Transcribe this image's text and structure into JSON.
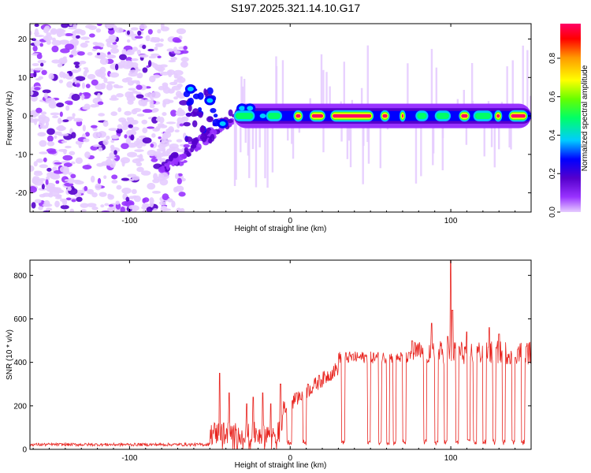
{
  "title": "S197.2025.321.14.10.G17",
  "chart_data": [
    {
      "type": "heatmap",
      "name": "spectrogram",
      "xlabel": "Height of straight line (km)",
      "ylabel": "Frequency (Hz)",
      "xlim": [
        -162,
        150
      ],
      "ylim": [
        -25,
        24
      ],
      "x_ticks": [
        -100,
        0,
        100
      ],
      "x_tick_labels": [
        "-100",
        "0",
        "100"
      ],
      "y_ticks": [
        -20,
        -10,
        0,
        10,
        20
      ],
      "y_tick_labels": [
        "-20",
        "-10",
        "0",
        "10",
        "20"
      ],
      "colorbar": {
        "label": "Normalized spectral amplitude",
        "range": [
          0.0,
          0.98
        ],
        "ticks": [
          0.0,
          0.2,
          0.4,
          0.6,
          0.8
        ],
        "tick_labels": [
          "0.0",
          "0.2",
          "0.4",
          "0.6",
          "0.8"
        ],
        "colormap": [
          "#e6ccff",
          "#9933ff",
          "#5500cc",
          "#0000ff",
          "#00ccff",
          "#00ff66",
          "#66ff00",
          "#ffff00",
          "#ff9900",
          "#ff0000",
          "#ff0066"
        ]
      },
      "features": {
        "noise_region_x": [
          -162,
          -65
        ],
        "onset_x": -65,
        "transition_x": [
          -65,
          -35
        ],
        "carrier_freq_hz": 0,
        "strong_segments_x": [
          [
            2,
            8
          ],
          [
            12,
            22
          ],
          [
            25,
            52
          ],
          [
            56,
            62
          ],
          [
            68,
            72
          ],
          [
            105,
            112
          ],
          [
            127,
            132
          ],
          [
            136,
            148
          ]
        ],
        "medium_segments_x": [
          [
            -35,
            -22
          ],
          [
            -15,
            -5
          ],
          [
            36,
            44
          ],
          [
            78,
            86
          ],
          [
            90,
            100
          ],
          [
            114,
            126
          ]
        ],
        "early_blobs": [
          [
            -62,
            7
          ],
          [
            -50,
            4
          ],
          [
            -42,
            -2
          ],
          [
            -30,
            2
          ],
          [
            -25,
            2
          ],
          [
            -17,
            0
          ],
          [
            -8,
            0
          ]
        ]
      }
    },
    {
      "type": "line",
      "name": "snr",
      "xlabel": "Height of straight line (km)",
      "ylabel": "SNR (10 * v/v)",
      "xlim": [
        -162,
        150
      ],
      "ylim": [
        0,
        870
      ],
      "x_ticks": [
        -100,
        0,
        100
      ],
      "x_tick_labels": [
        "-100",
        "0",
        "100"
      ],
      "y_ticks": [
        0,
        200,
        400,
        600,
        800
      ],
      "y_tick_labels": [
        "0",
        "200",
        "400",
        "600",
        "800"
      ],
      "line_color": "#e8231e",
      "noise_floor": 15,
      "gaps": [
        [
          -8,
          -5
        ],
        [
          -2,
          1
        ],
        [
          8,
          10
        ],
        [
          32,
          34
        ],
        [
          48,
          50
        ],
        [
          55,
          57
        ],
        [
          60,
          62
        ],
        [
          64,
          66
        ],
        [
          70,
          72
        ],
        [
          83,
          85
        ],
        [
          90,
          92
        ],
        [
          96,
          98
        ],
        [
          103,
          105
        ],
        [
          110,
          112
        ],
        [
          114,
          116
        ],
        [
          120,
          122
        ],
        [
          126,
          128
        ],
        [
          132,
          134
        ],
        [
          138,
          140
        ],
        [
          144,
          146
        ]
      ],
      "spikes": [
        [
          -44,
          350
        ],
        [
          -38,
          260
        ],
        [
          -27,
          210
        ],
        [
          -23,
          240
        ],
        [
          -17,
          260
        ],
        [
          -12,
          210
        ],
        [
          -6,
          300
        ],
        [
          -3,
          170
        ],
        [
          4,
          260
        ],
        [
          11,
          300
        ],
        [
          18,
          340
        ],
        [
          76,
          500
        ],
        [
          88,
          580
        ],
        [
          98,
          520
        ],
        [
          100,
          870
        ],
        [
          101,
          640
        ],
        [
          110,
          540
        ],
        [
          124,
          560
        ],
        [
          130,
          530
        ]
      ]
    }
  ]
}
